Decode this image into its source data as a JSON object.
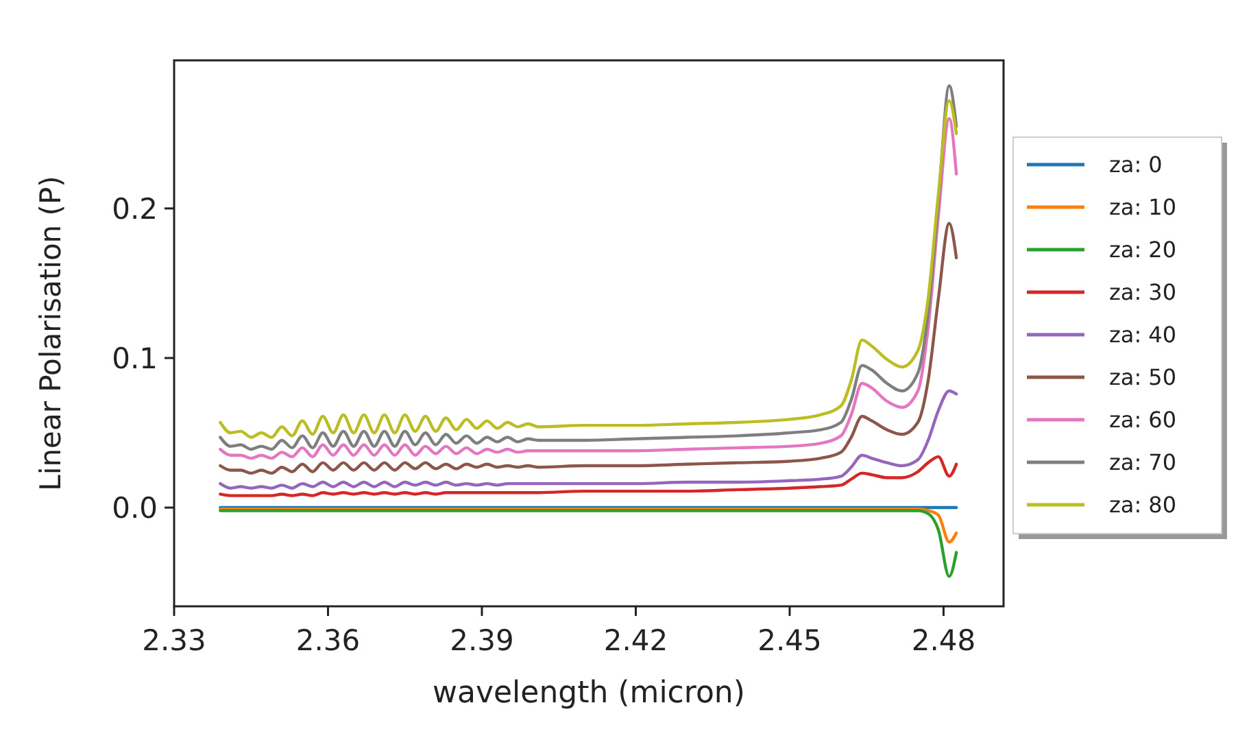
{
  "chart_data": {
    "type": "line",
    "xlabel": "wavelength (micron)",
    "ylabel": "Linear Polarisation (P)",
    "xlim": [
      2.33,
      2.4917
    ],
    "xticks": [
      2.33,
      2.36,
      2.39,
      2.42,
      2.45,
      2.48
    ],
    "ylim": [
      -0.066,
      0.299
    ],
    "yticks": [
      {
        "value": 0,
        "label": "0.0"
      },
      {
        "value": 0.1,
        "label": "0.1"
      },
      {
        "value": 0.2,
        "label": "0.2"
      }
    ],
    "grid": false,
    "legend": "right",
    "marker": "none",
    "line_style": "solid",
    "x": [
      2.339,
      2.341,
      2.343,
      2.345,
      2.347,
      2.349,
      2.351,
      2.353,
      2.355,
      2.357,
      2.359,
      2.361,
      2.363,
      2.365,
      2.367,
      2.369,
      2.371,
      2.373,
      2.375,
      2.377,
      2.379,
      2.381,
      2.383,
      2.385,
      2.387,
      2.389,
      2.391,
      2.393,
      2.395,
      2.397,
      2.399,
      2.401,
      2.41,
      2.42,
      2.43,
      2.44,
      2.45,
      2.456,
      2.46,
      2.462,
      2.4641,
      2.466,
      2.469,
      2.4719,
      2.475,
      2.477,
      2.479,
      2.4811,
      2.4825
    ],
    "series": [
      {
        "name": "za: 0",
        "color": "#1f77b4",
        "values": [
          0,
          0,
          0,
          0,
          0,
          0,
          0,
          0,
          0,
          0,
          0,
          0,
          0,
          0,
          0,
          0,
          0,
          0,
          0,
          0,
          0,
          0,
          0,
          0,
          0,
          0,
          0,
          0,
          0,
          0,
          0,
          0,
          0,
          0,
          0,
          0,
          0,
          0,
          0,
          0,
          0,
          0,
          0,
          0,
          0,
          0,
          0,
          0,
          0
        ]
      },
      {
        "name": "za: 10",
        "color": "#ff7f0e",
        "values": [
          -0.001,
          -0.001,
          -0.001,
          -0.001,
          -0.001,
          -0.001,
          -0.001,
          -0.001,
          -0.001,
          -0.001,
          -0.001,
          -0.001,
          -0.001,
          -0.001,
          -0.001,
          -0.001,
          -0.001,
          -0.001,
          -0.001,
          -0.001,
          -0.001,
          -0.001,
          -0.001,
          -0.001,
          -0.001,
          -0.001,
          -0.001,
          -0.001,
          -0.001,
          -0.001,
          -0.001,
          -0.001,
          -0.001,
          -0.001,
          -0.001,
          -0.001,
          -0.001,
          -0.001,
          -0.001,
          -0.001,
          -0.001,
          -0.001,
          -0.001,
          -0.001,
          -0.001,
          -0.002,
          -0.005,
          -0.023,
          -0.017
        ]
      },
      {
        "name": "za: 20",
        "color": "#2ca02c",
        "values": [
          -0.002,
          -0.002,
          -0.002,
          -0.002,
          -0.002,
          -0.002,
          -0.002,
          -0.002,
          -0.002,
          -0.002,
          -0.002,
          -0.002,
          -0.002,
          -0.002,
          -0.002,
          -0.002,
          -0.002,
          -0.002,
          -0.002,
          -0.002,
          -0.002,
          -0.002,
          -0.002,
          -0.002,
          -0.002,
          -0.002,
          -0.002,
          -0.002,
          -0.002,
          -0.002,
          -0.002,
          -0.002,
          -0.002,
          -0.002,
          -0.002,
          -0.002,
          -0.002,
          -0.002,
          -0.002,
          -0.002,
          -0.002,
          -0.002,
          -0.002,
          -0.002,
          -0.002,
          -0.004,
          -0.015,
          -0.046,
          -0.03
        ]
      },
      {
        "name": "za: 30",
        "color": "#d62728",
        "values": [
          0.009,
          0.008,
          0.008,
          0.008,
          0.008,
          0.008,
          0.009,
          0.008,
          0.009,
          0.008,
          0.01,
          0.009,
          0.01,
          0.009,
          0.01,
          0.009,
          0.01,
          0.009,
          0.01,
          0.009,
          0.01,
          0.009,
          0.01,
          0.01,
          0.01,
          0.01,
          0.01,
          0.01,
          0.01,
          0.01,
          0.01,
          0.01,
          0.011,
          0.011,
          0.011,
          0.012,
          0.013,
          0.014,
          0.015,
          0.019,
          0.023,
          0.022,
          0.02,
          0.02,
          0.024,
          0.03,
          0.034,
          0.021,
          0.029
        ]
      },
      {
        "name": "za: 40",
        "color": "#9467bd",
        "values": [
          0.016,
          0.013,
          0.014,
          0.013,
          0.014,
          0.013,
          0.015,
          0.013,
          0.016,
          0.014,
          0.017,
          0.014,
          0.017,
          0.014,
          0.017,
          0.014,
          0.017,
          0.014,
          0.017,
          0.015,
          0.017,
          0.015,
          0.017,
          0.015,
          0.016,
          0.015,
          0.016,
          0.015,
          0.016,
          0.016,
          0.016,
          0.016,
          0.016,
          0.016,
          0.017,
          0.017,
          0.018,
          0.019,
          0.021,
          0.027,
          0.035,
          0.033,
          0.03,
          0.028,
          0.032,
          0.045,
          0.065,
          0.078,
          0.076
        ]
      },
      {
        "name": "za: 50",
        "color": "#8c564b",
        "values": [
          0.028,
          0.025,
          0.025,
          0.023,
          0.025,
          0.023,
          0.027,
          0.024,
          0.029,
          0.024,
          0.03,
          0.025,
          0.03,
          0.025,
          0.03,
          0.025,
          0.03,
          0.025,
          0.03,
          0.026,
          0.03,
          0.026,
          0.029,
          0.026,
          0.029,
          0.027,
          0.029,
          0.027,
          0.028,
          0.027,
          0.028,
          0.027,
          0.028,
          0.028,
          0.029,
          0.03,
          0.031,
          0.033,
          0.037,
          0.047,
          0.061,
          0.058,
          0.052,
          0.049,
          0.057,
          0.085,
          0.14,
          0.19,
          0.167
        ]
      },
      {
        "name": "za: 60",
        "color": "#e377c2",
        "values": [
          0.039,
          0.035,
          0.035,
          0.033,
          0.035,
          0.033,
          0.037,
          0.034,
          0.04,
          0.034,
          0.042,
          0.035,
          0.042,
          0.035,
          0.042,
          0.035,
          0.042,
          0.035,
          0.042,
          0.035,
          0.041,
          0.036,
          0.041,
          0.036,
          0.04,
          0.036,
          0.039,
          0.037,
          0.039,
          0.037,
          0.038,
          0.038,
          0.038,
          0.038,
          0.039,
          0.04,
          0.041,
          0.043,
          0.048,
          0.062,
          0.083,
          0.08,
          0.071,
          0.067,
          0.078,
          0.12,
          0.195,
          0.26,
          0.223
        ]
      },
      {
        "name": "za: 70",
        "color": "#7f7f7f",
        "values": [
          0.047,
          0.041,
          0.042,
          0.039,
          0.041,
          0.039,
          0.045,
          0.04,
          0.048,
          0.04,
          0.05,
          0.041,
          0.051,
          0.041,
          0.051,
          0.041,
          0.051,
          0.041,
          0.051,
          0.042,
          0.05,
          0.042,
          0.049,
          0.043,
          0.048,
          0.043,
          0.047,
          0.044,
          0.047,
          0.044,
          0.046,
          0.045,
          0.045,
          0.046,
          0.047,
          0.048,
          0.05,
          0.052,
          0.057,
          0.072,
          0.095,
          0.092,
          0.083,
          0.078,
          0.09,
          0.13,
          0.205,
          0.282,
          0.255
        ]
      },
      {
        "name": "za: 80",
        "color": "#bcbd22",
        "values": [
          0.057,
          0.05,
          0.051,
          0.047,
          0.05,
          0.047,
          0.054,
          0.048,
          0.058,
          0.049,
          0.061,
          0.05,
          0.062,
          0.05,
          0.062,
          0.05,
          0.062,
          0.05,
          0.062,
          0.051,
          0.061,
          0.051,
          0.06,
          0.052,
          0.059,
          0.053,
          0.058,
          0.053,
          0.057,
          0.054,
          0.056,
          0.054,
          0.055,
          0.055,
          0.056,
          0.057,
          0.059,
          0.062,
          0.068,
          0.085,
          0.112,
          0.108,
          0.099,
          0.094,
          0.105,
          0.14,
          0.21,
          0.272,
          0.25
        ]
      }
    ]
  }
}
